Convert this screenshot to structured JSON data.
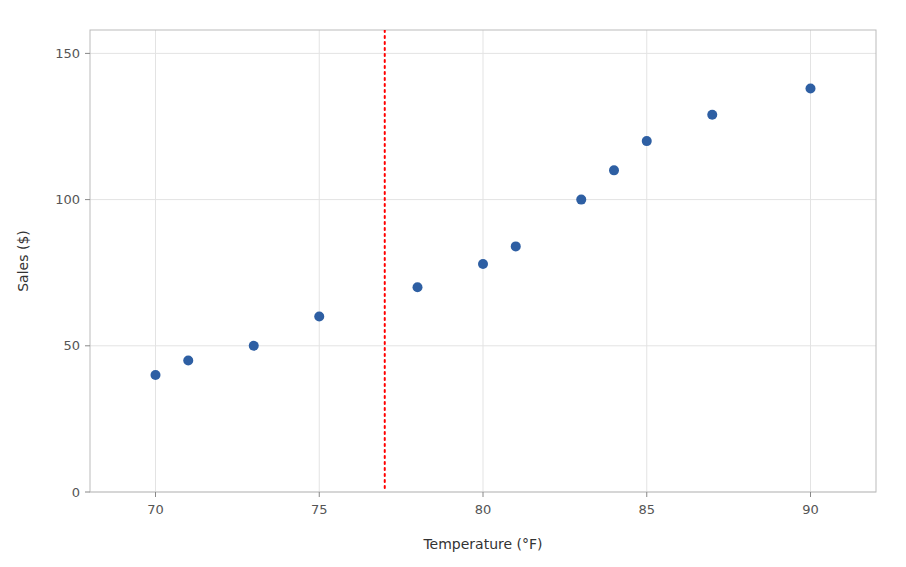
{
  "chart_data": {
    "type": "scatter",
    "x": [
      70,
      71,
      73,
      75,
      78,
      80,
      81,
      83,
      84,
      85,
      87,
      90
    ],
    "values": [
      40,
      45,
      50,
      60,
      70,
      78,
      84,
      100,
      110,
      120,
      129,
      138
    ],
    "color": "#2E5FA3",
    "xlabel": "Temperature (°F)",
    "ylabel": "Sales ($)",
    "xlim": [
      68,
      92
    ],
    "ylim": [
      0,
      158
    ],
    "xticks": [
      70,
      75,
      80,
      85,
      90
    ],
    "yticks": [
      0,
      50,
      100,
      150
    ],
    "grid": true,
    "vlines": [
      {
        "x": 77,
        "color": "#FF0000",
        "line_style": "dotted"
      }
    ]
  }
}
